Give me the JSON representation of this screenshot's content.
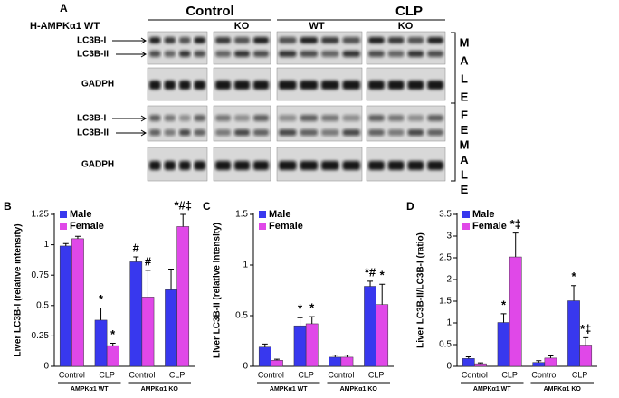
{
  "panel_a": {
    "label": "A",
    "conditions": [
      "Control",
      "CLP"
    ],
    "genotypes": [
      "H-AMPKα1 WT",
      "KO",
      "WT",
      "KO"
    ],
    "male_bands": [
      "LC3B-I",
      "LC3B-II",
      "GADPH"
    ],
    "female_bands": [
      "LC3B-I",
      "LC3B-II",
      "GADPH"
    ],
    "male_letters": [
      "M",
      "A",
      "L",
      "E"
    ],
    "female_letters": [
      "F",
      "E",
      "M",
      "A",
      "L",
      "E"
    ]
  },
  "chart_data": [
    {
      "type": "bar",
      "panel": "B",
      "ylabel": "Liver LC3B-I (relative intensity)",
      "categories": [
        "Control",
        "CLP",
        "Control",
        "CLP"
      ],
      "groups": [
        "AMPKα1 WT",
        "AMPKα1 KO"
      ],
      "series": [
        {
          "name": "Male",
          "color": "#3838ee",
          "values": [
            0.99,
            0.38,
            0.86,
            0.63
          ],
          "errors": [
            0.02,
            0.1,
            0.04,
            0.17
          ]
        },
        {
          "name": "Female",
          "color": "#e048e8",
          "values": [
            1.05,
            0.17,
            0.57,
            1.15
          ],
          "errors": [
            0.02,
            0.02,
            0.22,
            0.1
          ]
        }
      ],
      "annotations": [
        {
          "text": "*",
          "series": 0,
          "index": 1
        },
        {
          "text": "*",
          "series": 1,
          "index": 1
        },
        {
          "text": "#",
          "series": 0,
          "index": 2
        },
        {
          "text": "#",
          "series": 1,
          "index": 2
        },
        {
          "text": "*#‡",
          "series": 1,
          "index": 3
        }
      ],
      "ylim": [
        0,
        1.25
      ],
      "yticks": [
        0,
        0.25,
        0.5,
        0.75,
        1,
        1.25
      ],
      "legend": "upper left"
    },
    {
      "type": "bar",
      "panel": "C",
      "ylabel": "Liver LC3B-II (relative intensity)",
      "categories": [
        "Control",
        "CLP",
        "Control",
        "CLP"
      ],
      "groups": [
        "AMPKα1 WT",
        "AMPKα1 KO"
      ],
      "series": [
        {
          "name": "Male",
          "color": "#3838ee",
          "values": [
            0.19,
            0.4,
            0.09,
            0.79
          ],
          "errors": [
            0.03,
            0.08,
            0.02,
            0.05
          ]
        },
        {
          "name": "Female",
          "color": "#e048e8",
          "values": [
            0.06,
            0.42,
            0.09,
            0.61
          ],
          "errors": [
            0.01,
            0.07,
            0.02,
            0.2
          ]
        }
      ],
      "annotations": [
        {
          "text": "*",
          "series": 0,
          "index": 1
        },
        {
          "text": "*",
          "series": 1,
          "index": 1
        },
        {
          "text": "*#",
          "series": 0,
          "index": 3
        },
        {
          "text": "*",
          "series": 1,
          "index": 3
        }
      ],
      "ylim": [
        0,
        1.5
      ],
      "yticks": [
        0,
        0.5,
        1,
        1.5
      ],
      "legend": "upper left"
    },
    {
      "type": "bar",
      "panel": "D",
      "ylabel": "Liver LC3B-II/LC3B-I (ratio)",
      "categories": [
        "Control",
        "CLP",
        "Control",
        "CLP"
      ],
      "groups": [
        "AMPKα1 WT",
        "AMPKα1 KO"
      ],
      "series": [
        {
          "name": "Male",
          "color": "#3838ee",
          "values": [
            0.18,
            1.01,
            0.09,
            1.51
          ],
          "errors": [
            0.04,
            0.2,
            0.04,
            0.35
          ]
        },
        {
          "name": "Female",
          "color": "#e048e8",
          "values": [
            0.06,
            2.52,
            0.19,
            0.49
          ],
          "errors": [
            0.02,
            0.55,
            0.05,
            0.17
          ]
        }
      ],
      "annotations": [
        {
          "text": "*",
          "series": 0,
          "index": 1
        },
        {
          "text": "*‡",
          "series": 1,
          "index": 1
        },
        {
          "text": "*",
          "series": 0,
          "index": 3
        },
        {
          "text": "*‡",
          "series": 1,
          "index": 3
        }
      ],
      "ylim": [
        0,
        3.5
      ],
      "yticks": [
        0,
        0.5,
        1,
        1.5,
        2,
        2.5,
        3,
        3.5
      ],
      "legend": "upper left"
    }
  ]
}
